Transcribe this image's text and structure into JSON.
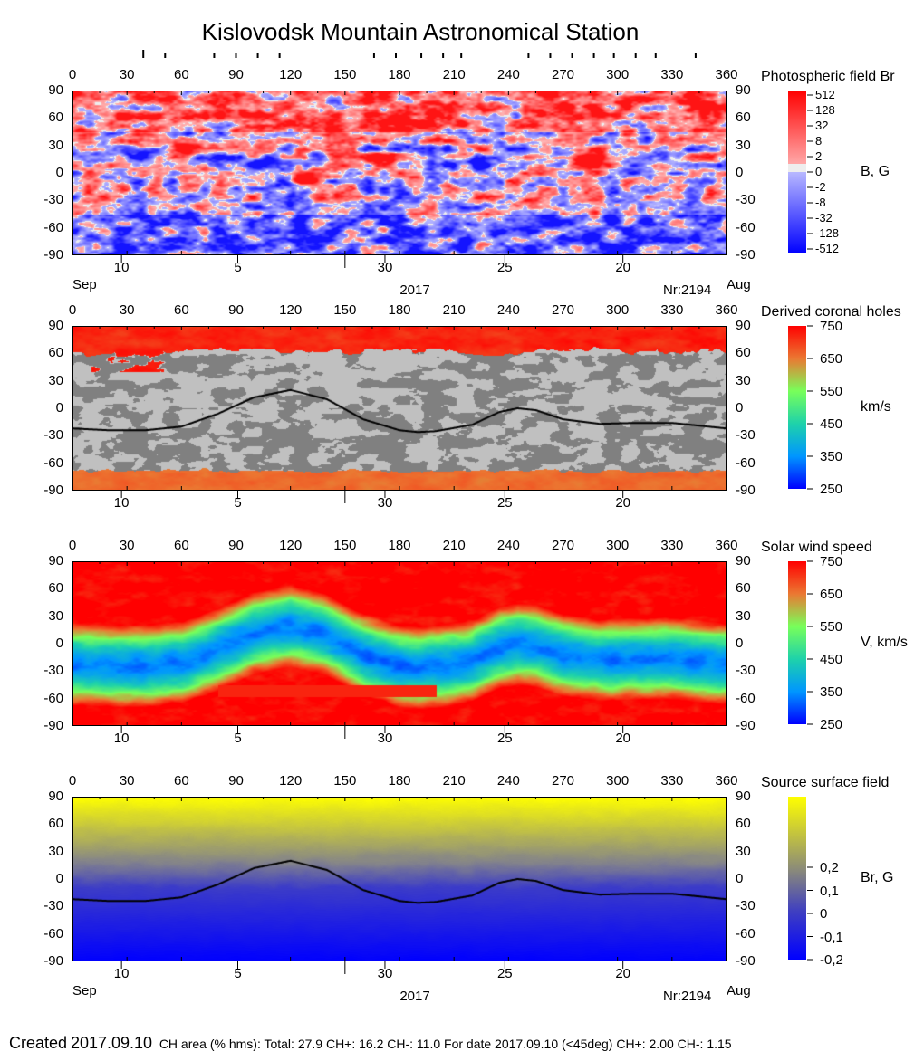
{
  "title": "Kislovodsk Mountain Astronomical Station",
  "lon_ticks": [
    "0",
    "30",
    "60",
    "90",
    "120",
    "150",
    "180",
    "210",
    "240",
    "270",
    "300",
    "330",
    "360"
  ],
  "lat_ticks": [
    "90",
    "60",
    "30",
    "0",
    "-30",
    "-60",
    "-90"
  ],
  "top_markers_lon": [
    39,
    51,
    78,
    90,
    102,
    114,
    166,
    178,
    192,
    204,
    214,
    251,
    263,
    275,
    287,
    298,
    310,
    321,
    343
  ],
  "date_ticks": [
    {
      "label": "10",
      "lon": 27
    },
    {
      "label": "5",
      "lon": 91
    },
    {
      "label": "30",
      "lon": 172
    },
    {
      "label": "25",
      "lon": 238
    },
    {
      "label": "20",
      "lon": 303
    }
  ],
  "date_labels": {
    "start_month": "Sep",
    "year": "2017",
    "rotation": "Nr:2194",
    "end_month": "Aug"
  },
  "colors": {
    "positive": "#ff0000",
    "negative": "#0000ff",
    "zero": "#eeeeee",
    "ch_gray_light": "#c0c0c0",
    "ch_gray_dark": "#808080",
    "ss_top": "#ffff00",
    "ss_bottom": "#0000ff"
  },
  "chart_data": [
    {
      "type": "heatmap",
      "title": "Photospheric field Br",
      "unit": "B, G",
      "xlim": [
        0,
        360
      ],
      "ylim": [
        -90,
        90
      ],
      "colorbar_ticks": [
        "512",
        "128",
        "32",
        "8",
        "2",
        "0",
        "-2",
        "-8",
        "-32",
        "-128",
        "-512"
      ]
    },
    {
      "type": "heatmap",
      "title": "Derived coronal holes",
      "unit": "km/s",
      "xlim": [
        0,
        360
      ],
      "ylim": [
        -90,
        90
      ],
      "colorbar_ticks": [
        "750",
        "650",
        "550",
        "450",
        "350",
        "250"
      ],
      "neutral_line": true
    },
    {
      "type": "heatmap",
      "title": "Solar wind speed",
      "unit": "V, km/s",
      "xlim": [
        0,
        360
      ],
      "ylim": [
        -90,
        90
      ],
      "colorbar_ticks": [
        "750",
        "650",
        "550",
        "450",
        "350",
        "250"
      ]
    },
    {
      "type": "heatmap",
      "title": "Source surface field",
      "unit": "Br, G",
      "xlim": [
        0,
        360
      ],
      "ylim": [
        -90,
        90
      ],
      "colorbar_ticks": [
        "0,2",
        "0,1",
        "0",
        "-0,1",
        "-0,2"
      ],
      "neutral_line": true
    }
  ],
  "neutral_line": {
    "lon": [
      0,
      20,
      40,
      60,
      80,
      100,
      120,
      140,
      160,
      180,
      190,
      200,
      220,
      235,
      245,
      255,
      270,
      290,
      310,
      330,
      360
    ],
    "lat": [
      -22,
      -24,
      -24,
      -20,
      -6,
      12,
      20,
      10,
      -12,
      -24,
      -26,
      -25,
      -18,
      -4,
      0,
      -2,
      -12,
      -17,
      -16,
      -16,
      -22
    ]
  },
  "footer": {
    "created_label": "Created",
    "created_date": "2017.09.10",
    "stats": "CH area (% hms): Total: 27.9 CH+: 16.2   CH-: 11.0    For date 2017.09.10 (<45deg) CH+: 2.00    CH-: 1.15"
  }
}
